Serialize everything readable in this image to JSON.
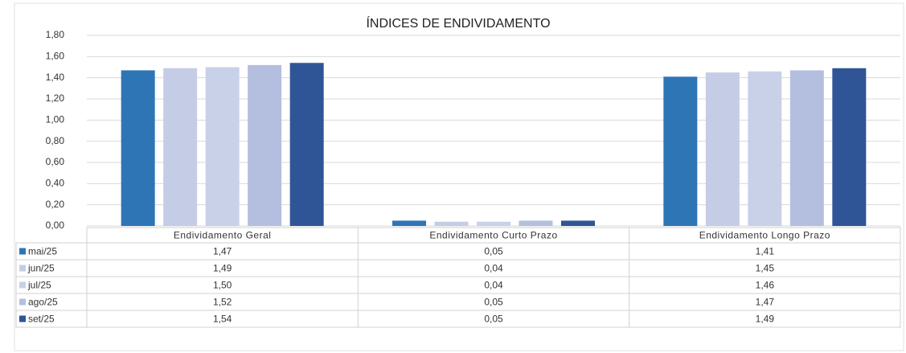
{
  "chart_data": {
    "type": "bar",
    "title": "ÍNDICES DE ENDIVIDAMENTO",
    "categories": [
      "Endividamento Geral",
      "Endividamento Curto Prazo",
      "Endividamento Longo Prazo"
    ],
    "series": [
      {
        "name": "mai/25",
        "color": "#2e75b6",
        "values": [
          1.47,
          0.05,
          1.41
        ],
        "value_labels": [
          "1,47",
          "0,05",
          "1,41"
        ]
      },
      {
        "name": "jun/25",
        "color": "#c5cde6",
        "values": [
          1.49,
          0.04,
          1.45
        ],
        "value_labels": [
          "1,49",
          "0,04",
          "1,45"
        ]
      },
      {
        "name": "jul/25",
        "color": "#c9d1e8",
        "values": [
          1.5,
          0.04,
          1.46
        ],
        "value_labels": [
          "1,50",
          "0,04",
          "1,46"
        ]
      },
      {
        "name": "ago/25",
        "color": "#b4bfe0",
        "values": [
          1.52,
          0.05,
          1.47
        ],
        "value_labels": [
          "1,52",
          "0,05",
          "1,47"
        ]
      },
      {
        "name": "set/25",
        "color": "#2f5597",
        "values": [
          1.54,
          0.05,
          1.49
        ],
        "value_labels": [
          "1,54",
          "0,05",
          "1,49"
        ]
      }
    ],
    "ylim": [
      0,
      1.8
    ],
    "yticks": [
      {
        "value": 0,
        "label": "0,00"
      },
      {
        "value": 0.2,
        "label": "0,20"
      },
      {
        "value": 0.4,
        "label": "0,40"
      },
      {
        "value": 0.6,
        "label": "0,60"
      },
      {
        "value": 0.8,
        "label": "0,80"
      },
      {
        "value": 1.0,
        "label": "1,00"
      },
      {
        "value": 1.2,
        "label": "1,20"
      },
      {
        "value": 1.4,
        "label": "1,40"
      },
      {
        "value": 1.6,
        "label": "1,60"
      },
      {
        "value": 1.8,
        "label": "1,80"
      }
    ],
    "grid": true
  }
}
